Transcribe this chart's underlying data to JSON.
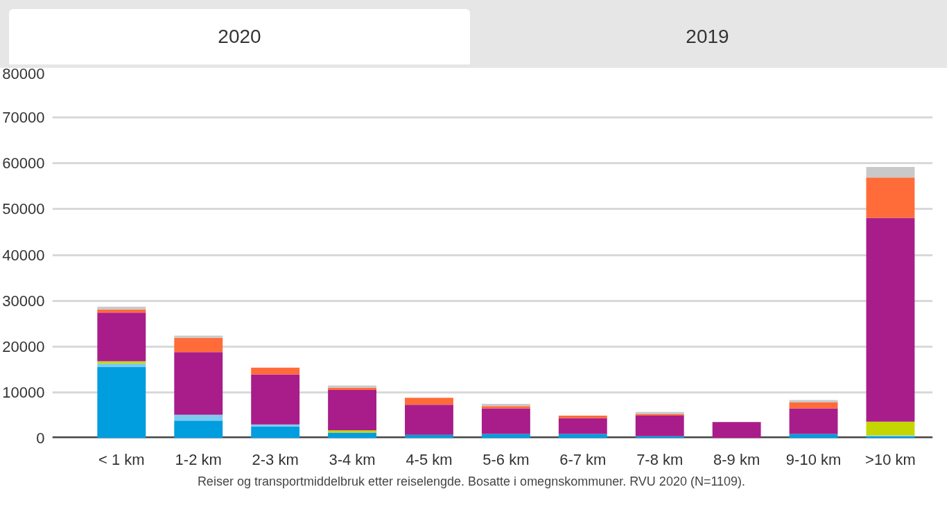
{
  "chart_data": {
    "type": "bar",
    "stacked": true,
    "categories": [
      "< 1 km",
      "1-2 km",
      "2-3 km",
      "3-4 km",
      "4-5 km",
      "5-6 km",
      "6-7 km",
      "7-8 km",
      "8-9 km",
      "9-10 km",
      ">10 km"
    ],
    "series": [
      {
        "color": "#009ddf",
        "values": [
          15500,
          3800,
          2500,
          1200,
          700,
          900,
          900,
          400,
          0,
          900,
          400
        ]
      },
      {
        "color": "#7ccbef",
        "values": [
          800,
          1300,
          500,
          0,
          0,
          0,
          0,
          0,
          0,
          0,
          200
        ]
      },
      {
        "color": "#c4d600",
        "values": [
          500,
          0,
          0,
          500,
          0,
          0,
          0,
          0,
          0,
          0,
          3000
        ]
      },
      {
        "color": "#a81d8a",
        "values": [
          10600,
          13700,
          10900,
          8800,
          6600,
          5600,
          3500,
          4500,
          3500,
          5600,
          44500
        ]
      },
      {
        "color": "#ff6b39",
        "values": [
          700,
          3100,
          1500,
          500,
          1500,
          500,
          500,
          300,
          0,
          1300,
          8800
        ]
      },
      {
        "color": "#c9c9c9",
        "values": [
          600,
          500,
          0,
          500,
          0,
          500,
          0,
          500,
          0,
          500,
          2300
        ]
      }
    ],
    "ylim": [
      0,
      80000
    ],
    "yticks": [
      0,
      10000,
      20000,
      30000,
      40000,
      50000,
      60000,
      70000,
      80000
    ],
    "grid": "y",
    "annotations": [
      "2020",
      "2019",
      "Reiser og transportmiddelbruk etter reiselengde. Bosatte i omegnskommuner. RVU 2020 (N=1109)."
    ]
  }
}
